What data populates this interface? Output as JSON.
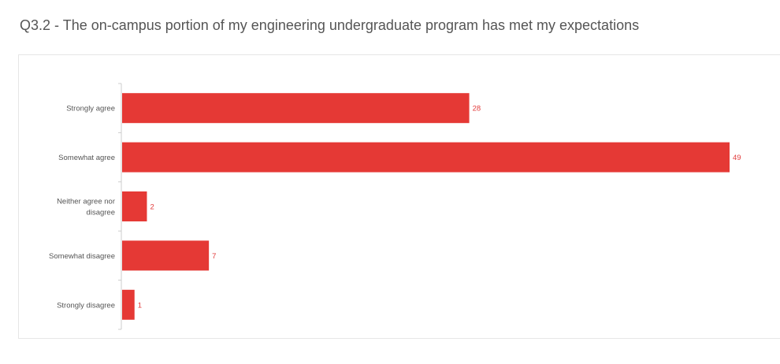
{
  "title": "Q3.2 - The on-campus portion of my engineering undergraduate program has met my expectations",
  "chart_data": {
    "type": "bar",
    "orientation": "horizontal",
    "categories": [
      [
        "Strongly agree"
      ],
      [
        "Somewhat agree"
      ],
      [
        "Neither agree nor",
        "disagree"
      ],
      [
        "Somewhat disagree"
      ],
      [
        "Strongly disagree"
      ]
    ],
    "values": [
      28,
      49,
      2,
      7,
      1
    ],
    "xlim": [
      0,
      49
    ],
    "bar_color": "#e53935",
    "label_color": "#e23b3b",
    "grid": false,
    "legend": "none",
    "data_labels": true
  }
}
